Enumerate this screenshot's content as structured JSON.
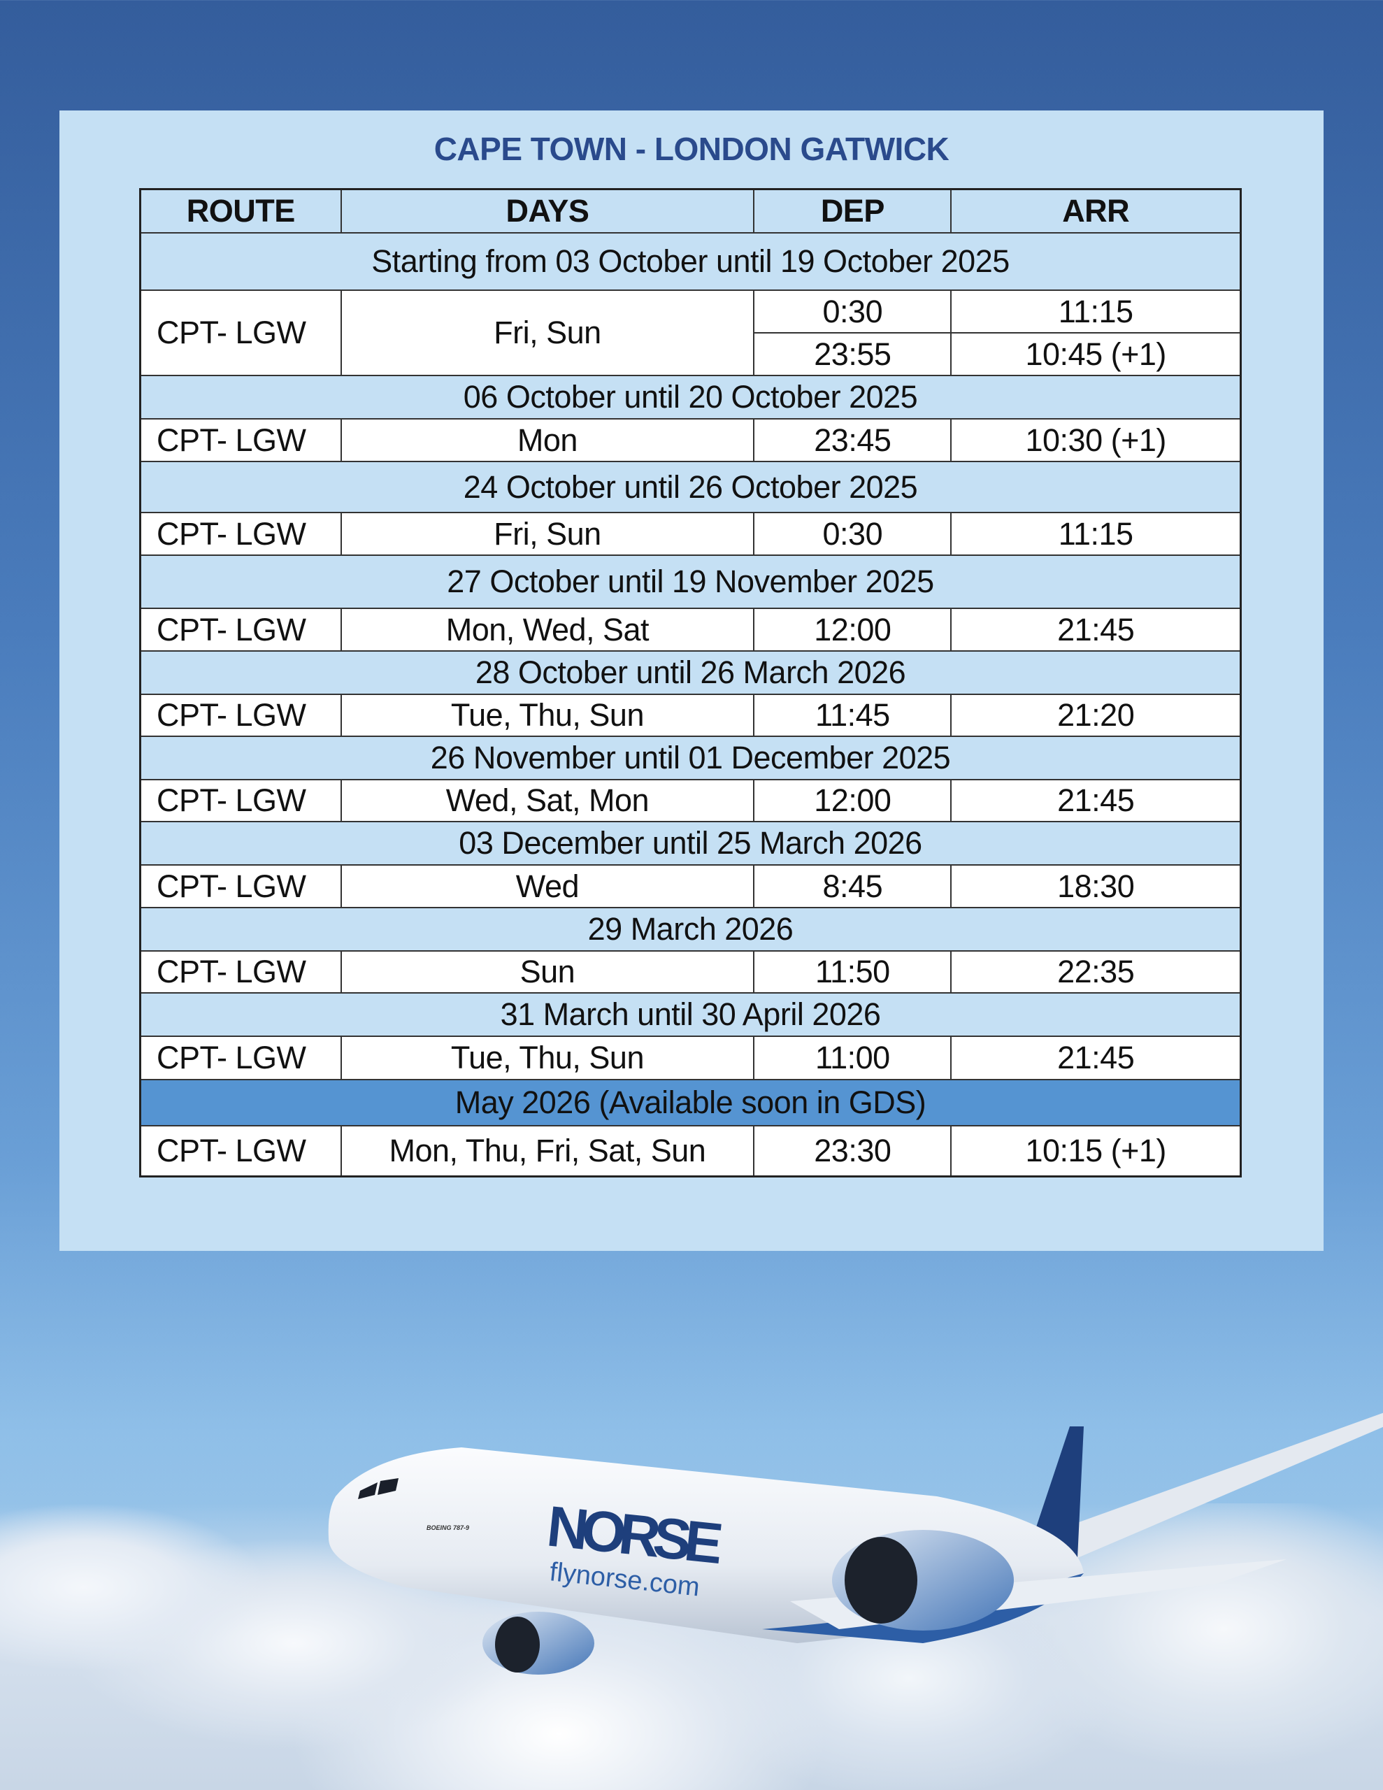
{
  "title": "CAPE TOWN - LONDON GATWICK",
  "columns": [
    "ROUTE",
    "DAYS",
    "DEP",
    "ARR"
  ],
  "sections": [
    {
      "label": "Starting from 03 October until 19 October 2025",
      "highlight": false,
      "rows": [
        {
          "route": "CPT- LGW",
          "days": "Fri, Sun",
          "times": [
            {
              "dep": "0:30",
              "arr": "11:15"
            },
            {
              "dep": "23:55",
              "arr": "10:45 (+1)"
            }
          ]
        }
      ]
    },
    {
      "label": "06 October until 20 October 2025",
      "highlight": false,
      "rows": [
        {
          "route": "CPT- LGW",
          "days": "Mon",
          "times": [
            {
              "dep": "23:45",
              "arr": "10:30 (+1)"
            }
          ]
        }
      ]
    },
    {
      "label": "24 October until 26 October 2025",
      "highlight": false,
      "rows": [
        {
          "route": "CPT- LGW",
          "days": "Fri, Sun",
          "times": [
            {
              "dep": "0:30",
              "arr": "11:15"
            }
          ]
        }
      ]
    },
    {
      "label": "27 October until 19 November 2025",
      "highlight": false,
      "rows": [
        {
          "route": "CPT- LGW",
          "days": "Mon, Wed, Sat",
          "times": [
            {
              "dep": "12:00",
              "arr": "21:45"
            }
          ]
        }
      ]
    },
    {
      "label": "28 October until 26 March 2026",
      "highlight": false,
      "rows": [
        {
          "route": "CPT- LGW",
          "days": "Tue, Thu, Sun",
          "times": [
            {
              "dep": "11:45",
              "arr": "21:20"
            }
          ]
        }
      ]
    },
    {
      "label": "26 November until 01 December 2025",
      "highlight": false,
      "rows": [
        {
          "route": "CPT- LGW",
          "days": "Wed, Sat, Mon",
          "times": [
            {
              "dep": "12:00",
              "arr": "21:45"
            }
          ]
        }
      ]
    },
    {
      "label": "03 December until 25 March 2026",
      "highlight": false,
      "rows": [
        {
          "route": "CPT- LGW",
          "days": "Wed",
          "times": [
            {
              "dep": "8:45",
              "arr": "18:30"
            }
          ]
        }
      ]
    },
    {
      "label": "29 March 2026",
      "highlight": false,
      "rows": [
        {
          "route": "CPT- LGW",
          "days": "Sun",
          "times": [
            {
              "dep": "11:50",
              "arr": "22:35"
            }
          ]
        }
      ]
    },
    {
      "label": "31 March until 30 April 2026",
      "highlight": false,
      "rows": [
        {
          "route": "CPT- LGW",
          "days": "Tue, Thu, Sun",
          "times": [
            {
              "dep": "11:00",
              "arr": "21:45"
            }
          ]
        }
      ]
    },
    {
      "label": "May 2026 (Available soon in GDS)",
      "highlight": true,
      "rows": [
        {
          "route": "CPT- LGW",
          "days": "Mon, Thu, Fri, Sat, Sun",
          "times": [
            {
              "dep": "23:30",
              "arr": "10:15 (+1)"
            }
          ]
        }
      ]
    }
  ],
  "colors": {
    "panel": "#c5e0f4",
    "title": "#2a4a8c",
    "highlight_section": "#5594d2"
  },
  "image": {
    "brand": "NORSE",
    "website": "flynorse.com",
    "aircraft": "BOEING 787-9"
  }
}
